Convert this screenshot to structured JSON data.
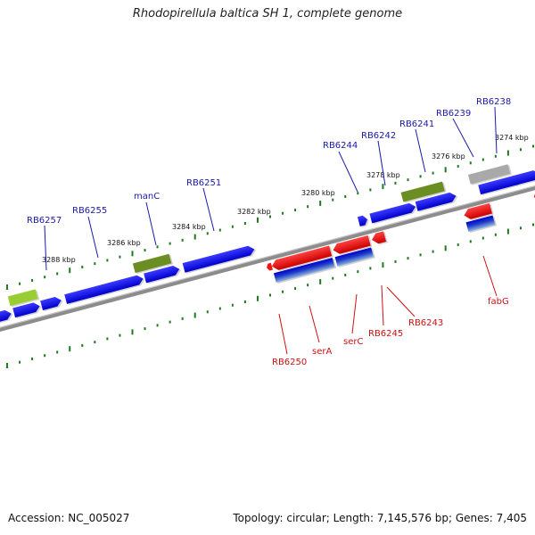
{
  "title": "Rhodopirellula baltica SH 1, complete genome",
  "footer": {
    "accession": "Accession: NC_005027",
    "summary": "Topology: circular; Length: 7,145,576 bp; Genes: 7,405"
  },
  "colors": {
    "forward_label": "#1a1aaa",
    "reverse_label": "#cc1111",
    "blue_gene": "#0a0af0",
    "red_gene": "#ff1010",
    "olive_gene": "#6b8e23",
    "lime_gene": "#9acd32",
    "grey_gene": "#a9a9a9",
    "ticks": "#1e7a1e",
    "backbone": "#8c8c8c"
  },
  "scale_labels": [
    "3288 kbp",
    "3286 kbp",
    "3284 kbp",
    "3282 kbp",
    "3280 kbp",
    "3278 kbp",
    "3276 kbp",
    "3274 kbp"
  ],
  "forward_labels": [
    "RB6257",
    "RB6255",
    "manC",
    "RB6251",
    "RB6244",
    "RB6242",
    "RB6241",
    "RB6239",
    "RB6238"
  ],
  "reverse_labels": [
    "RB6250",
    "serA",
    "serC",
    "RB6245",
    "RB6243",
    "fabG"
  ]
}
